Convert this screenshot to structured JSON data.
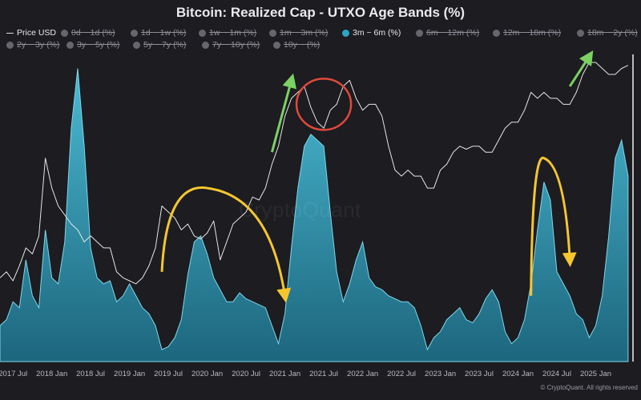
{
  "title": "Bitcoin: Realized Cap - UTXO Age Bands (%)",
  "watermark": "CryptoQuant",
  "credit": "© CryptoQuant. All rights reserved",
  "legend": [
    {
      "label": "Price USD",
      "active": true,
      "kind": "line"
    },
    {
      "label": "0d ~ 1d (%)",
      "active": false
    },
    {
      "label": "1d ~ 1w (%)",
      "active": false
    },
    {
      "label": "1w ~ 1m (%)",
      "active": false
    },
    {
      "label": "1m ~ 3m (%)",
      "active": false
    },
    {
      "label": "3m ~ 6m (%)",
      "active": true
    },
    {
      "label": "6m ~ 12m (%)",
      "active": false
    },
    {
      "label": "12m ~ 18m (%)",
      "active": false
    },
    {
      "label": "18m ~ 2y (%)",
      "active": false
    },
    {
      "label": "2y ~ 3y (%)",
      "active": false
    },
    {
      "label": "3y ~ 5y (%)",
      "active": false
    },
    {
      "label": "5y ~ 7y (%)",
      "active": false
    },
    {
      "label": "7y ~ 10y (%)",
      "active": false
    },
    {
      "label": "10y ~ (%)",
      "active": false
    }
  ],
  "chart_data": {
    "type": "area",
    "title": "Bitcoin: Realized Cap - UTXO Age Bands (%)",
    "x_tick_labels": [
      "2017 Jul",
      "2018 Jan",
      "2018 Jul",
      "2019 Jan",
      "2019 Jul",
      "2020 Jan",
      "2020 Jul",
      "2021 Jan",
      "2021 Jul",
      "2022 Jan",
      "2022 Jul",
      "2023 Jan",
      "2023 Jul",
      "2024 Jan",
      "2024 Jul",
      "2025 Jan"
    ],
    "x_range": [
      "2017-05",
      "2025-07"
    ],
    "grid": false,
    "series": [
      {
        "name": "3m ~ 6m (%)",
        "kind": "area",
        "color": "#2aa6c4",
        "points": [
          [
            "2017-05",
            0.12
          ],
          [
            "2017-06",
            0.14
          ],
          [
            "2017-07",
            0.2
          ],
          [
            "2017-08",
            0.18
          ],
          [
            "2017-09",
            0.34
          ],
          [
            "2017-10",
            0.22
          ],
          [
            "2017-11",
            0.18
          ],
          [
            "2017-12",
            0.44
          ],
          [
            "2018-01",
            0.28
          ],
          [
            "2018-02",
            0.26
          ],
          [
            "2018-03",
            0.4
          ],
          [
            "2018-04",
            0.78
          ],
          [
            "2018-05",
            0.98
          ],
          [
            "2018-06",
            0.72
          ],
          [
            "2018-07",
            0.38
          ],
          [
            "2018-08",
            0.28
          ],
          [
            "2018-09",
            0.26
          ],
          [
            "2018-10",
            0.27
          ],
          [
            "2018-11",
            0.2
          ],
          [
            "2018-12",
            0.22
          ],
          [
            "2019-01",
            0.26
          ],
          [
            "2019-02",
            0.22
          ],
          [
            "2019-03",
            0.18
          ],
          [
            "2019-04",
            0.16
          ],
          [
            "2019-05",
            0.12
          ],
          [
            "2019-06",
            0.04
          ],
          [
            "2019-07",
            0.05
          ],
          [
            "2019-08",
            0.08
          ],
          [
            "2019-09",
            0.14
          ],
          [
            "2019-10",
            0.29
          ],
          [
            "2019-11",
            0.4
          ],
          [
            "2019-12",
            0.42
          ],
          [
            "2020-01",
            0.36
          ],
          [
            "2020-02",
            0.28
          ],
          [
            "2020-03",
            0.24
          ],
          [
            "2020-04",
            0.2
          ],
          [
            "2020-05",
            0.2
          ],
          [
            "2020-06",
            0.23
          ],
          [
            "2020-07",
            0.21
          ],
          [
            "2020-08",
            0.2
          ],
          [
            "2020-09",
            0.19
          ],
          [
            "2020-10",
            0.18
          ],
          [
            "2020-11",
            0.12
          ],
          [
            "2020-12",
            0.06
          ],
          [
            "2021-01",
            0.16
          ],
          [
            "2021-02",
            0.38
          ],
          [
            "2021-03",
            0.58
          ],
          [
            "2021-04",
            0.72
          ],
          [
            "2021-05",
            0.76
          ],
          [
            "2021-06",
            0.74
          ],
          [
            "2021-07",
            0.72
          ],
          [
            "2021-08",
            0.5
          ],
          [
            "2021-09",
            0.3
          ],
          [
            "2021-10",
            0.2
          ],
          [
            "2021-11",
            0.26
          ],
          [
            "2021-12",
            0.34
          ],
          [
            "2022-01",
            0.4
          ],
          [
            "2022-02",
            0.28
          ],
          [
            "2022-03",
            0.25
          ],
          [
            "2022-04",
            0.24
          ],
          [
            "2022-05",
            0.22
          ],
          [
            "2022-06",
            0.21
          ],
          [
            "2022-07",
            0.2
          ],
          [
            "2022-08",
            0.2
          ],
          [
            "2022-09",
            0.18
          ],
          [
            "2022-10",
            0.12
          ],
          [
            "2022-11",
            0.04
          ],
          [
            "2022-12",
            0.08
          ],
          [
            "2023-01",
            0.1
          ],
          [
            "2023-02",
            0.14
          ],
          [
            "2023-03",
            0.16
          ],
          [
            "2023-04",
            0.18
          ],
          [
            "2023-05",
            0.14
          ],
          [
            "2023-06",
            0.13
          ],
          [
            "2023-07",
            0.16
          ],
          [
            "2023-08",
            0.21
          ],
          [
            "2023-09",
            0.24
          ],
          [
            "2023-10",
            0.2
          ],
          [
            "2023-11",
            0.1
          ],
          [
            "2023-12",
            0.06
          ],
          [
            "2024-01",
            0.08
          ],
          [
            "2024-02",
            0.14
          ],
          [
            "2024-03",
            0.26
          ],
          [
            "2024-04",
            0.44
          ],
          [
            "2024-05",
            0.6
          ],
          [
            "2024-06",
            0.54
          ],
          [
            "2024-07",
            0.3
          ],
          [
            "2024-08",
            0.26
          ],
          [
            "2024-09",
            0.22
          ],
          [
            "2024-10",
            0.16
          ],
          [
            "2024-11",
            0.14
          ],
          [
            "2024-12",
            0.08
          ],
          [
            "2025-01",
            0.12
          ],
          [
            "2025-02",
            0.22
          ],
          [
            "2025-03",
            0.42
          ],
          [
            "2025-04",
            0.68
          ],
          [
            "2025-05",
            0.74
          ],
          [
            "2025-06",
            0.62
          ]
        ]
      },
      {
        "name": "Price USD",
        "kind": "line",
        "color": "#e6e6e6",
        "points": [
          [
            "2017-05",
            0.28
          ],
          [
            "2017-06",
            0.3
          ],
          [
            "2017-07",
            0.27
          ],
          [
            "2017-08",
            0.32
          ],
          [
            "2017-09",
            0.38
          ],
          [
            "2017-10",
            0.36
          ],
          [
            "2017-11",
            0.42
          ],
          [
            "2017-12",
            0.68
          ],
          [
            "2018-01",
            0.58
          ],
          [
            "2018-02",
            0.52
          ],
          [
            "2018-03",
            0.49
          ],
          [
            "2018-04",
            0.46
          ],
          [
            "2018-05",
            0.44
          ],
          [
            "2018-06",
            0.4
          ],
          [
            "2018-07",
            0.42
          ],
          [
            "2018-08",
            0.4
          ],
          [
            "2018-09",
            0.38
          ],
          [
            "2018-10",
            0.38
          ],
          [
            "2018-11",
            0.3
          ],
          [
            "2018-12",
            0.28
          ],
          [
            "2019-01",
            0.27
          ],
          [
            "2019-02",
            0.26
          ],
          [
            "2019-03",
            0.28
          ],
          [
            "2019-04",
            0.32
          ],
          [
            "2019-05",
            0.38
          ],
          [
            "2019-06",
            0.52
          ],
          [
            "2019-07",
            0.5
          ],
          [
            "2019-08",
            0.48
          ],
          [
            "2019-09",
            0.44
          ],
          [
            "2019-10",
            0.46
          ],
          [
            "2019-11",
            0.42
          ],
          [
            "2019-12",
            0.41
          ],
          [
            "2020-01",
            0.43
          ],
          [
            "2020-02",
            0.47
          ],
          [
            "2020-03",
            0.34
          ],
          [
            "2020-04",
            0.4
          ],
          [
            "2020-05",
            0.46
          ],
          [
            "2020-06",
            0.48
          ],
          [
            "2020-07",
            0.5
          ],
          [
            "2020-08",
            0.55
          ],
          [
            "2020-09",
            0.54
          ],
          [
            "2020-10",
            0.58
          ],
          [
            "2020-11",
            0.66
          ],
          [
            "2020-12",
            0.72
          ],
          [
            "2021-01",
            0.82
          ],
          [
            "2021-02",
            0.88
          ],
          [
            "2021-03",
            0.9
          ],
          [
            "2021-04",
            0.92
          ],
          [
            "2021-05",
            0.85
          ],
          [
            "2021-06",
            0.8
          ],
          [
            "2021-07",
            0.78
          ],
          [
            "2021-08",
            0.84
          ],
          [
            "2021-09",
            0.86
          ],
          [
            "2021-10",
            0.92
          ],
          [
            "2021-11",
            0.94
          ],
          [
            "2021-12",
            0.88
          ],
          [
            "2022-01",
            0.84
          ],
          [
            "2022-02",
            0.86
          ],
          [
            "2022-03",
            0.86
          ],
          [
            "2022-04",
            0.82
          ],
          [
            "2022-05",
            0.72
          ],
          [
            "2022-06",
            0.64
          ],
          [
            "2022-07",
            0.62
          ],
          [
            "2022-08",
            0.64
          ],
          [
            "2022-09",
            0.62
          ],
          [
            "2022-10",
            0.62
          ],
          [
            "2022-11",
            0.58
          ],
          [
            "2022-12",
            0.58
          ],
          [
            "2023-01",
            0.64
          ],
          [
            "2023-02",
            0.66
          ],
          [
            "2023-03",
            0.7
          ],
          [
            "2023-04",
            0.72
          ],
          [
            "2023-05",
            0.71
          ],
          [
            "2023-06",
            0.72
          ],
          [
            "2023-07",
            0.72
          ],
          [
            "2023-08",
            0.7
          ],
          [
            "2023-09",
            0.7
          ],
          [
            "2023-10",
            0.74
          ],
          [
            "2023-11",
            0.78
          ],
          [
            "2023-12",
            0.8
          ],
          [
            "2024-01",
            0.8
          ],
          [
            "2024-02",
            0.84
          ],
          [
            "2024-03",
            0.9
          ],
          [
            "2024-04",
            0.88
          ],
          [
            "2024-05",
            0.9
          ],
          [
            "2024-06",
            0.88
          ],
          [
            "2024-07",
            0.88
          ],
          [
            "2024-08",
            0.86
          ],
          [
            "2024-09",
            0.86
          ],
          [
            "2024-10",
            0.9
          ],
          [
            "2024-11",
            0.96
          ],
          [
            "2024-12",
            1.0
          ],
          [
            "2025-01",
            1.0
          ],
          [
            "2025-02",
            0.98
          ],
          [
            "2025-03",
            0.96
          ],
          [
            "2025-04",
            0.96
          ],
          [
            "2025-05",
            0.98
          ],
          [
            "2025-06",
            0.99
          ]
        ]
      }
    ],
    "annotations": [
      {
        "type": "arrow",
        "color": "#7bd162",
        "direction": "up",
        "from": [
          "2020-11",
          0.7
        ],
        "to": [
          "2021-02",
          0.94
        ]
      },
      {
        "type": "arrow",
        "color": "#7bd162",
        "direction": "up",
        "from": [
          "2024-09",
          0.92
        ],
        "to": [
          "2024-12",
          1.02
        ]
      },
      {
        "type": "ellipse",
        "color": "#e0493a",
        "center": [
          "2021-07",
          0.86
        ]
      },
      {
        "type": "curved-arrow",
        "color": "#f5c62e",
        "from": [
          "2019-06",
          0.3
        ],
        "peak": [
          "2020-01",
          0.58
        ],
        "to": [
          "2021-01",
          0.22
        ]
      },
      {
        "type": "curved-arrow",
        "color": "#f5c62e",
        "from": [
          "2024-03",
          0.22
        ],
        "peak": [
          "2024-05",
          0.68
        ],
        "to": [
          "2024-09",
          0.34
        ]
      }
    ]
  }
}
